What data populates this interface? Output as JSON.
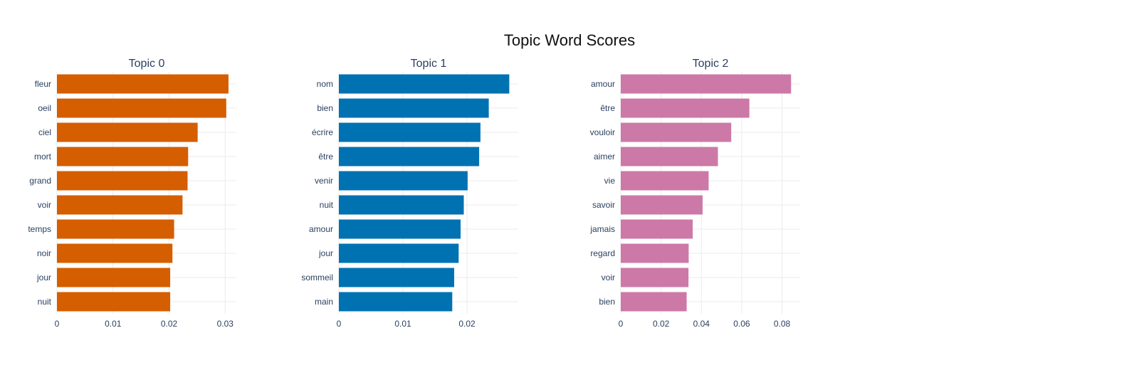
{
  "title": "Topic Word Scores",
  "chart_data": [
    {
      "type": "bar",
      "orientation": "horizontal",
      "title": "Topic 0",
      "color": "#D55E00",
      "categories": [
        "fleur",
        "oeil",
        "ciel",
        "mort",
        "grand",
        "voir",
        "temps",
        "noir",
        "jour",
        "nuit"
      ],
      "values": [
        0.0306,
        0.0302,
        0.0251,
        0.0234,
        0.0233,
        0.0224,
        0.0209,
        0.0206,
        0.0202,
        0.0202
      ],
      "xlim": [
        0,
        0.032
      ],
      "xticks": [
        0,
        0.01,
        0.02,
        0.03
      ],
      "xtick_labels": [
        "0",
        "0.01",
        "0.02",
        "0.03"
      ],
      "grid": true
    },
    {
      "type": "bar",
      "orientation": "horizontal",
      "title": "Topic 1",
      "color": "#0072B2",
      "categories": [
        "nom",
        "bien",
        "écrire",
        "être",
        "venir",
        "nuit",
        "amour",
        "jour",
        "sommeil",
        "main"
      ],
      "values": [
        0.0266,
        0.0234,
        0.0221,
        0.0219,
        0.0201,
        0.0195,
        0.019,
        0.0187,
        0.018,
        0.0177
      ],
      "xlim": [
        0,
        0.028
      ],
      "xticks": [
        0,
        0.01,
        0.02
      ],
      "xtick_labels": [
        "0",
        "0.01",
        "0.02"
      ],
      "grid": true
    },
    {
      "type": "bar",
      "orientation": "horizontal",
      "title": "Topic 2",
      "color": "#CC79A7",
      "categories": [
        "amour",
        "être",
        "vouloir",
        "aimer",
        "vie",
        "savoir",
        "jamais",
        "regard",
        "voir",
        "bien"
      ],
      "values": [
        0.0845,
        0.0638,
        0.0548,
        0.0482,
        0.0436,
        0.0406,
        0.0357,
        0.0337,
        0.0336,
        0.0327
      ],
      "xlim": [
        0,
        0.089
      ],
      "xticks": [
        0,
        0.02,
        0.04,
        0.06,
        0.08
      ],
      "xtick_labels": [
        "0",
        "0.02",
        "0.04",
        "0.06",
        "0.08"
      ],
      "grid": true
    }
  ]
}
